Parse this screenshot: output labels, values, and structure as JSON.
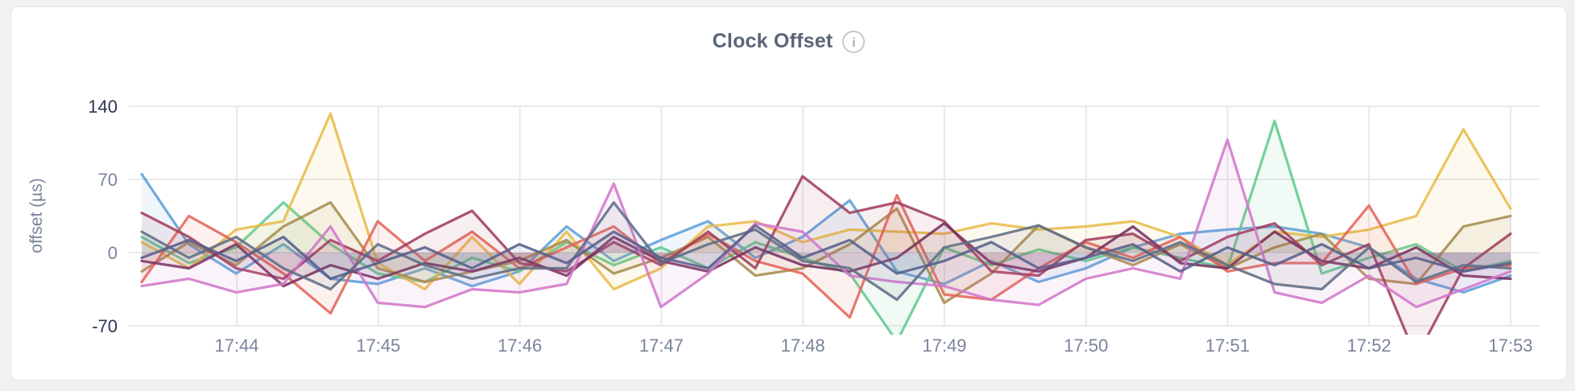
{
  "page": {
    "background": "#f1f1f3"
  },
  "card": {
    "background": "#ffffff",
    "border_color": "#e4e5e9"
  },
  "header": {
    "title": "Clock Offset",
    "info_icon": "info-circle-icon",
    "info_icon_glyph": "i"
  },
  "chart_data": {
    "type": "line",
    "title": "Clock Offset",
    "xlabel": "",
    "ylabel": "offset (µs)",
    "ylim": [
      -70,
      140
    ],
    "grid": true,
    "legend_position": "none",
    "x_start": "17:43:20",
    "x_interval_seconds": 20,
    "x_ticks": [
      "17:44",
      "17:45",
      "17:46",
      "17:47",
      "17:48",
      "17:49",
      "17:50",
      "17:51",
      "17:52",
      "17:53"
    ],
    "y_ticks": [
      {
        "label": "140",
        "value": 140,
        "emphasis": true
      },
      {
        "label": "70",
        "value": 70,
        "emphasis": false
      },
      {
        "label": "0",
        "value": 0,
        "emphasis": false
      },
      {
        "label": "-70",
        "value": -70,
        "emphasis": true
      }
    ],
    "axis_colors": {
      "emphasis": "#2b3650",
      "minor": "#79839a",
      "grid": "#e9e9ec"
    },
    "series": [
      {
        "name": "series-1-blue",
        "color": "#5C9FD9",
        "values": [
          75,
          8,
          -20,
          8,
          -25,
          -30,
          -15,
          -32,
          -18,
          25,
          -8,
          12,
          30,
          -5,
          15,
          50,
          -18,
          -30,
          -8,
          -28,
          -15,
          5,
          18,
          22,
          25,
          18,
          5,
          -25,
          -38,
          -22
        ]
      },
      {
        "name": "series-2-green",
        "color": "#5FCB8E",
        "values": [
          15,
          -10,
          5,
          48,
          8,
          -20,
          -28,
          -5,
          -18,
          10,
          -12,
          5,
          -15,
          10,
          -5,
          -20,
          -85,
          5,
          -12,
          3,
          -8,
          5,
          -5,
          -15,
          126,
          -20,
          -5,
          8,
          -18,
          -8
        ]
      },
      {
        "name": "series-3-gold",
        "color": "#E8BC4B",
        "values": [
          10,
          -15,
          22,
          30,
          133,
          -10,
          -35,
          15,
          -30,
          20,
          -35,
          -15,
          25,
          30,
          10,
          22,
          20,
          18,
          28,
          22,
          25,
          30,
          15,
          -12,
          20,
          15,
          22,
          35,
          118,
          42
        ]
      },
      {
        "name": "series-4-olive",
        "color": "#A78C4F",
        "values": [
          -18,
          10,
          -12,
          25,
          48,
          -15,
          -28,
          -18,
          -8,
          12,
          -20,
          -5,
          15,
          -22,
          -15,
          8,
          42,
          -48,
          -20,
          26,
          5,
          -12,
          8,
          -15,
          5,
          18,
          -25,
          -30,
          25,
          35
        ]
      },
      {
        "name": "series-5-red",
        "color": "#E4655A",
        "values": [
          -28,
          35,
          10,
          -20,
          -58,
          30,
          -8,
          20,
          -15,
          5,
          25,
          -10,
          18,
          -8,
          -20,
          -62,
          55,
          -40,
          -45,
          -15,
          10,
          -5,
          15,
          -18,
          -10,
          -10,
          45,
          -30,
          -15,
          -12
        ]
      },
      {
        "name": "series-6-wine",
        "color": "#A23E5C",
        "values": [
          38,
          15,
          -15,
          -25,
          12,
          -8,
          18,
          40,
          -10,
          -18,
          10,
          -12,
          20,
          -15,
          73,
          38,
          48,
          30,
          -18,
          -22,
          12,
          18,
          -8,
          15,
          28,
          -12,
          8,
          -100,
          -15,
          18
        ]
      },
      {
        "name": "series-7-plum",
        "color": "#76305F",
        "values": [
          -8,
          -15,
          8,
          -32,
          -12,
          -25,
          -10,
          -18,
          -5,
          -22,
          15,
          -8,
          -18,
          5,
          -12,
          -18,
          -5,
          28,
          -10,
          -18,
          -5,
          25,
          -10,
          -15,
          20,
          -8,
          -15,
          5,
          -22,
          -25
        ]
      },
      {
        "name": "series-8-orchid",
        "color": "#D277CB",
        "values": [
          -32,
          -25,
          -38,
          -30,
          25,
          -48,
          -52,
          -35,
          -38,
          -30,
          66,
          -52,
          -20,
          28,
          20,
          -22,
          -28,
          -32,
          -45,
          -50,
          -25,
          -15,
          -25,
          108,
          -38,
          -48,
          -22,
          -52,
          -35,
          -18
        ]
      },
      {
        "name": "series-9-slate",
        "color": "#5E6D85",
        "values": [
          20,
          -5,
          15,
          -15,
          -35,
          8,
          -12,
          -25,
          -15,
          -15,
          48,
          -10,
          8,
          22,
          -8,
          -15,
          -45,
          5,
          15,
          26,
          5,
          -8,
          10,
          -12,
          -30,
          -35,
          5,
          -28,
          -12,
          -15
        ]
      },
      {
        "name": "series-10-indigo",
        "color": "#565F8B",
        "values": [
          -5,
          12,
          -8,
          15,
          -25,
          -10,
          5,
          -15,
          8,
          -10,
          20,
          -5,
          -15,
          26,
          -5,
          12,
          -20,
          -8,
          10,
          -15,
          -5,
          8,
          -18,
          5,
          -12,
          8,
          -15,
          -5,
          -18,
          -10
        ]
      }
    ]
  }
}
